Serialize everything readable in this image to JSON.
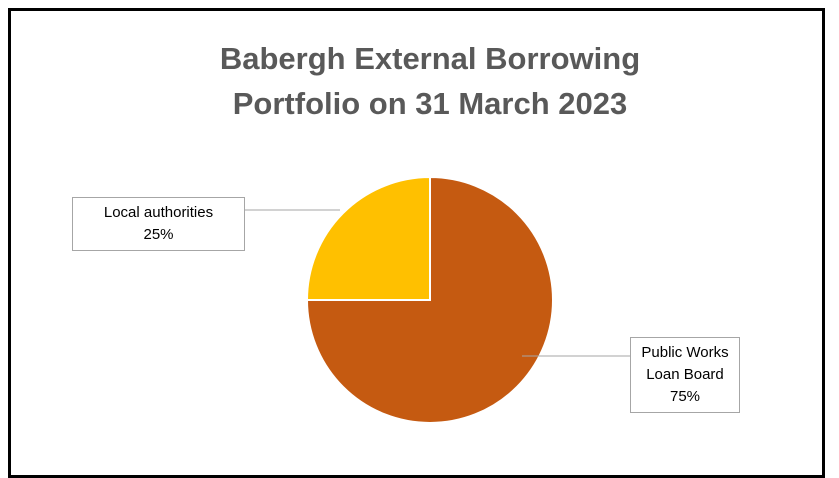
{
  "chart_data": {
    "type": "pie",
    "title": "Babergh External Borrowing Portfolio on 31 March 2023",
    "categories": [
      "Public Works Loan Board",
      "Local authorities"
    ],
    "values": [
      75,
      25
    ],
    "value_labels": [
      "75%",
      "25%"
    ],
    "colors": [
      "#c55a11",
      "#ffc000"
    ]
  }
}
